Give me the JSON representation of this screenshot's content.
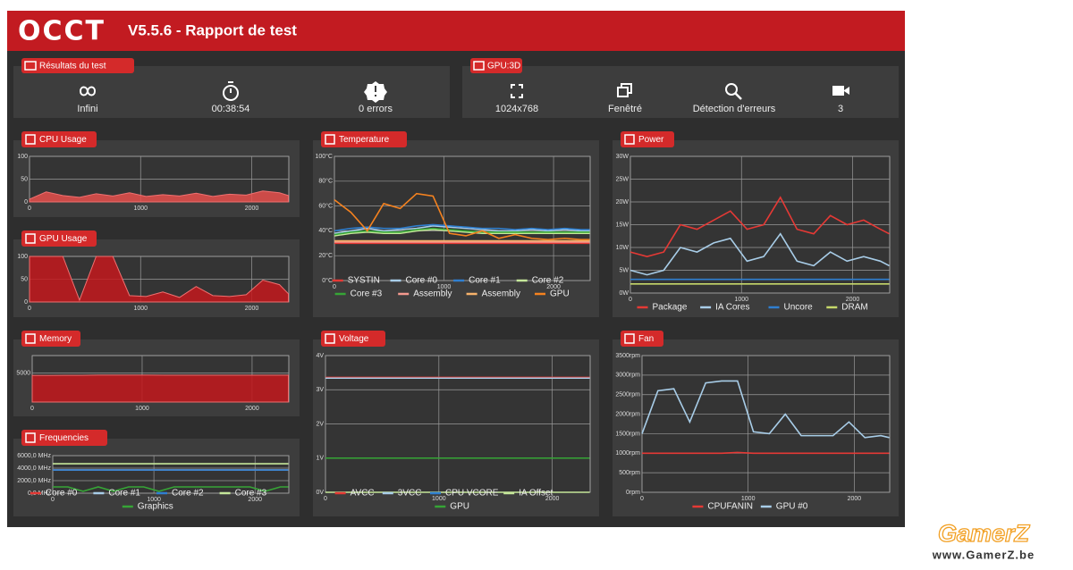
{
  "header": {
    "logo": "OCCT",
    "title": "V5.5.6 - Rapport de test"
  },
  "results": {
    "title": "Résultats du test",
    "items": [
      "Infini",
      "00:38:54",
      "0 errors"
    ]
  },
  "gpu3d": {
    "title": "GPU:3D",
    "items": [
      "1024x768",
      "Fenêtré",
      "Détection d'erreurs",
      "3"
    ]
  },
  "watermark": {
    "brand": "GamerZ",
    "url": "www.GamerZ.be"
  },
  "charts": [
    {
      "type": "area",
      "title": "CPU Usage",
      "color": "#e8504c",
      "x": [
        0,
        150,
        300,
        450,
        600,
        750,
        900,
        1050,
        1200,
        1350,
        1500,
        1650,
        1800,
        1950,
        2100,
        2250,
        2330
      ],
      "values": [
        6,
        22,
        14,
        10,
        18,
        13,
        20,
        12,
        16,
        13,
        19,
        12,
        17,
        15,
        24,
        20,
        14
      ],
      "xlim": [
        0,
        2334
      ],
      "xticks": [
        0,
        1000,
        2000
      ],
      "ylim": [
        0,
        100
      ],
      "yticks": [
        0,
        50,
        100
      ],
      "grid": true
    },
    {
      "type": "area",
      "title": "GPU Usage",
      "color": "#c4191d",
      "x": [
        0,
        150,
        300,
        450,
        600,
        750,
        900,
        1050,
        1200,
        1350,
        1500,
        1650,
        1800,
        1950,
        2100,
        2250,
        2330
      ],
      "values": [
        100,
        100,
        100,
        4,
        100,
        100,
        14,
        12,
        22,
        10,
        34,
        14,
        12,
        16,
        48,
        38,
        18
      ],
      "xlim": [
        0,
        2334
      ],
      "xticks": [
        0,
        1000,
        2000
      ],
      "ylim": [
        0,
        100
      ],
      "yticks": [
        0,
        50,
        100
      ],
      "grid": true
    },
    {
      "type": "area",
      "title": "Memory",
      "color": "#c4191d",
      "x": [
        0,
        150,
        300,
        450,
        600,
        750,
        900,
        1050,
        1200,
        1350,
        1500,
        1650,
        1800,
        1950,
        2100,
        2250,
        2330
      ],
      "values": [
        4600,
        4600,
        4620,
        4620,
        4650,
        4650,
        4650,
        4650,
        4640,
        4640,
        4630,
        4630,
        4640,
        4640,
        4630,
        4630,
        4630
      ],
      "xlim": [
        0,
        2334
      ],
      "xticks": [
        0,
        1000,
        2000
      ],
      "ylim": [
        0,
        8000
      ],
      "yticks": [
        5000
      ],
      "grid": true
    },
    {
      "type": "line",
      "title": "Frequencies",
      "x": [
        0,
        150,
        300,
        450,
        600,
        750,
        900,
        1050,
        1200,
        1350,
        1500,
        1650,
        1800,
        1950,
        2100,
        2250,
        2330
      ],
      "series": [
        {
          "name": "Core #0",
          "color": "#e53935",
          "values": [
            3700,
            3700,
            3700,
            3700,
            3700,
            3700,
            3700,
            3700,
            3700,
            3700,
            3700,
            3700,
            3700,
            3700,
            3700,
            3700,
            3700
          ]
        },
        {
          "name": "Core #1",
          "color": "#a8cde8",
          "values": [
            3700,
            3700,
            3700,
            3700,
            3700,
            3700,
            3700,
            3700,
            3700,
            3700,
            3700,
            3700,
            3700,
            3700,
            3700,
            3700,
            3700
          ]
        },
        {
          "name": "Core #2",
          "color": "#2f7fd0",
          "values": [
            3700,
            3700,
            3700,
            3700,
            3700,
            3700,
            3700,
            3700,
            3700,
            3700,
            3700,
            3700,
            3700,
            3700,
            3700,
            3700,
            3700
          ]
        },
        {
          "name": "Core #3",
          "color": "#c5e79a",
          "values": [
            4700,
            4700,
            4700,
            4700,
            4700,
            4700,
            4700,
            4700,
            4700,
            4700,
            4700,
            4700,
            4700,
            4700,
            4700,
            4700,
            4700
          ]
        },
        {
          "name": "Graphics",
          "color": "#36a536",
          "values": [
            1000,
            1000,
            300,
            1000,
            300,
            1000,
            1000,
            300,
            1000,
            1000,
            1000,
            1000,
            1000,
            1000,
            300,
            1000,
            1000
          ]
        }
      ],
      "xlim": [
        0,
        2334
      ],
      "xticks": [
        0,
        1000,
        2000
      ],
      "ylim": [
        0,
        6000
      ],
      "yticks": [
        {
          "value": 0,
          "label": "0,0 MHz"
        },
        {
          "value": 2000,
          "label": "2000,0 MHz"
        },
        {
          "value": 4000,
          "label": "4000,0 MHz"
        },
        {
          "value": 6000,
          "label": "6000,0 MHz"
        }
      ],
      "grid": true
    },
    {
      "type": "line",
      "title": "Temperature",
      "x": [
        0,
        150,
        300,
        450,
        600,
        750,
        900,
        1050,
        1200,
        1350,
        1500,
        1650,
        1800,
        1950,
        2100,
        2250,
        2330
      ],
      "series": [
        {
          "name": "SYSTIN",
          "color": "#e53935",
          "values": [
            30,
            30,
            30,
            30,
            30,
            30,
            30,
            30,
            30,
            30,
            30,
            30,
            30,
            30,
            30,
            30,
            30
          ]
        },
        {
          "name": "Core #0",
          "color": "#a8cde8",
          "values": [
            38,
            40,
            42,
            40,
            41,
            42,
            44,
            43,
            42,
            41,
            40,
            40,
            41,
            40,
            41,
            40,
            40
          ]
        },
        {
          "name": "Core #1",
          "color": "#2f7fd0",
          "values": [
            40,
            42,
            43,
            42,
            42,
            44,
            45,
            44,
            43,
            42,
            42,
            41,
            42,
            41,
            42,
            41,
            41
          ]
        },
        {
          "name": "Core #2",
          "color": "#c5e79a",
          "values": [
            36,
            38,
            39,
            38,
            38,
            40,
            41,
            40,
            39,
            38,
            38,
            38,
            38,
            38,
            38,
            38,
            38
          ]
        },
        {
          "name": "Core #3",
          "color": "#36a536",
          "values": [
            37,
            39,
            40,
            39,
            39,
            41,
            42,
            41,
            40,
            39,
            39,
            39,
            39,
            39,
            39,
            39,
            39
          ]
        },
        {
          "name": "Assembly",
          "color": "#f4998e",
          "values": [
            31,
            31,
            31,
            31,
            31,
            31,
            31,
            31,
            31,
            31,
            31,
            31,
            31,
            31,
            31,
            31,
            31
          ]
        },
        {
          "name": "Assembly",
          "color": "#f7b26b",
          "values": [
            32,
            32,
            32,
            32,
            32,
            32,
            32,
            32,
            32,
            32,
            32,
            32,
            32,
            32,
            32,
            32,
            32
          ]
        },
        {
          "name": "GPU",
          "color": "#f5821f",
          "values": [
            65,
            55,
            40,
            62,
            58,
            70,
            68,
            38,
            36,
            40,
            34,
            37,
            34,
            33,
            34,
            33,
            33
          ]
        }
      ],
      "xlim": [
        0,
        2334
      ],
      "xticks": [
        0,
        1000,
        2000
      ],
      "ylim": [
        0,
        100
      ],
      "yticks": [
        {
          "value": 0,
          "label": "0°C"
        },
        {
          "value": 20,
          "label": "20°C"
        },
        {
          "value": 40,
          "label": "40°C"
        },
        {
          "value": 60,
          "label": "60°C"
        },
        {
          "value": 80,
          "label": "80°C"
        },
        {
          "value": 100,
          "label": "100°C"
        }
      ],
      "grid": true
    },
    {
      "type": "line",
      "title": "Power",
      "x": [
        0,
        150,
        300,
        450,
        600,
        750,
        900,
        1050,
        1200,
        1350,
        1500,
        1650,
        1800,
        1950,
        2100,
        2250,
        2330
      ],
      "series": [
        {
          "name": "Package",
          "color": "#e53935",
          "values": [
            9,
            8,
            9,
            15,
            14,
            16,
            18,
            14,
            15,
            21,
            14,
            13,
            17,
            15,
            16,
            14,
            13
          ]
        },
        {
          "name": "IA Cores",
          "color": "#a8cde8",
          "values": [
            5,
            4,
            5,
            10,
            9,
            11,
            12,
            7,
            8,
            13,
            7,
            6,
            9,
            7,
            8,
            7,
            6
          ]
        },
        {
          "name": "Uncore",
          "color": "#2f7fd0",
          "values": [
            3,
            3,
            3,
            3,
            3,
            3,
            3,
            3,
            3,
            3,
            3,
            3,
            3,
            3,
            3,
            3,
            3
          ]
        },
        {
          "name": "DRAM",
          "color": "#c6d86a",
          "values": [
            2,
            2,
            2,
            2,
            2,
            2,
            2,
            2,
            2,
            2,
            2,
            2,
            2,
            2,
            2,
            2,
            2
          ]
        }
      ],
      "xlim": [
        0,
        2334
      ],
      "xticks": [
        0,
        1000,
        2000
      ],
      "ylim": [
        0,
        30
      ],
      "yticks": [
        {
          "value": 0,
          "label": "0W"
        },
        {
          "value": 5,
          "label": "5W"
        },
        {
          "value": 10,
          "label": "10W"
        },
        {
          "value": 15,
          "label": "15W"
        },
        {
          "value": 20,
          "label": "20W"
        },
        {
          "value": 25,
          "label": "25W"
        },
        {
          "value": 30,
          "label": "30W"
        }
      ],
      "grid": true
    },
    {
      "type": "line",
      "title": "Voltage",
      "x": [
        0,
        150,
        300,
        450,
        600,
        750,
        900,
        1050,
        1200,
        1350,
        1500,
        1650,
        1800,
        1950,
        2100,
        2250,
        2330
      ],
      "series": [
        {
          "name": "AVCC",
          "color": "#e53935",
          "values": [
            3.36,
            3.36,
            3.36,
            3.36,
            3.36,
            3.36,
            3.36,
            3.36,
            3.36,
            3.36,
            3.36,
            3.36,
            3.36,
            3.36,
            3.36,
            3.36,
            3.36
          ]
        },
        {
          "name": "3VCC",
          "color": "#a8cde8",
          "values": [
            3.34,
            3.34,
            3.34,
            3.34,
            3.34,
            3.34,
            3.34,
            3.34,
            3.34,
            3.34,
            3.34,
            3.34,
            3.34,
            3.34,
            3.34,
            3.34,
            3.34
          ]
        },
        {
          "name": "CPU VCORE",
          "color": "#2f7fd0",
          "values": [
            1,
            1,
            1,
            1,
            1,
            1,
            1,
            1,
            1,
            1,
            1,
            1,
            1,
            1,
            1,
            1,
            1
          ]
        },
        {
          "name": "IA Offset",
          "color": "#c5e79a",
          "values": [
            0,
            0,
            0,
            0,
            0,
            0,
            0,
            0,
            0,
            0,
            0,
            0,
            0,
            0,
            0,
            0,
            0
          ]
        },
        {
          "name": "GPU",
          "color": "#36a536",
          "values": [
            1,
            1,
            1,
            1,
            1,
            1,
            1,
            1,
            1,
            1,
            1,
            1,
            1,
            1,
            1,
            1,
            1
          ]
        }
      ],
      "xlim": [
        0,
        2334
      ],
      "xticks": [
        0,
        1000,
        2000
      ],
      "ylim": [
        0,
        4
      ],
      "yticks": [
        {
          "value": 0,
          "label": "0V"
        },
        {
          "value": 1,
          "label": "1V"
        },
        {
          "value": 2,
          "label": "2V"
        },
        {
          "value": 3,
          "label": "3V"
        },
        {
          "value": 4,
          "label": "4V"
        }
      ],
      "grid": true
    },
    {
      "type": "line",
      "title": "Fan",
      "x": [
        0,
        150,
        300,
        450,
        600,
        750,
        900,
        1050,
        1200,
        1350,
        1500,
        1650,
        1800,
        1950,
        2100,
        2250,
        2330
      ],
      "series": [
        {
          "name": "CPUFANIN",
          "color": "#e53935",
          "values": [
            1000,
            1000,
            1000,
            1000,
            1000,
            1000,
            1020,
            1000,
            1000,
            1000,
            1000,
            1000,
            1000,
            1000,
            1000,
            1000,
            1000
          ]
        },
        {
          "name": "GPU #0",
          "color": "#a8cde8",
          "values": [
            1500,
            2600,
            2650,
            1800,
            2800,
            2850,
            2850,
            1550,
            1500,
            2000,
            1450,
            1450,
            1450,
            1800,
            1400,
            1450,
            1400
          ]
        }
      ],
      "xlim": [
        0,
        2334
      ],
      "xticks": [
        0,
        1000,
        2000
      ],
      "ylim": [
        0,
        3500
      ],
      "yticks": [
        {
          "value": 0,
          "label": "0rpm"
        },
        {
          "value": 500,
          "label": "500rpm"
        },
        {
          "value": 1000,
          "label": "1000rpm"
        },
        {
          "value": 1500,
          "label": "1500rpm"
        },
        {
          "value": 2000,
          "label": "2000rpm"
        },
        {
          "value": 2500,
          "label": "2500rpm"
        },
        {
          "value": 3000,
          "label": "3000rpm"
        },
        {
          "value": 3500,
          "label": "3500rpm"
        }
      ],
      "grid": true
    }
  ]
}
